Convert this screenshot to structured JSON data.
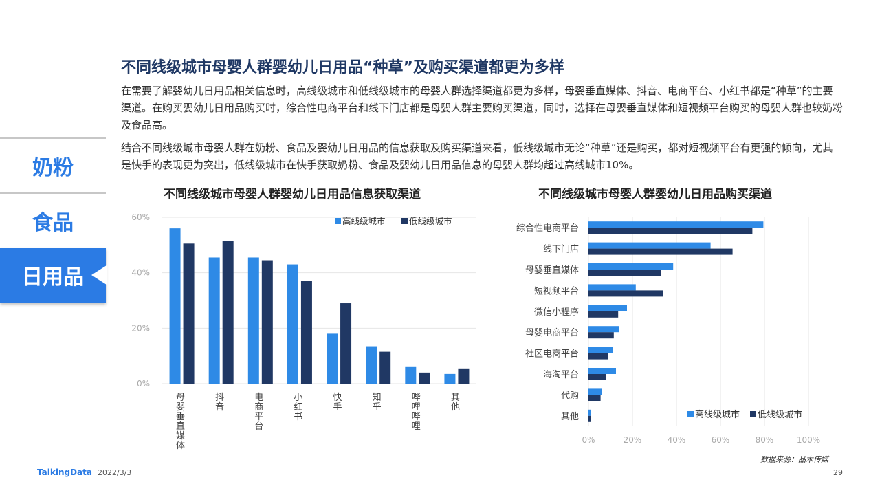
{
  "title": "不同线级城市母婴人群婴幼儿日用品“种草”及购买渠道都更为多样",
  "paragraphs": [
    "在需要了解婴幼儿日用品相关信息时，高线级城市和低线级城市的母婴人群选择渠道都更为多样，母婴垂直媒体、抖音、电商平台、小红书都是“种草”的主要渠道。在购买婴幼儿日用品购买时，综合性电商平台和线下门店都是母婴人群主要购买渠道，同时，选择在母婴垂直媒体和短视频平台购买的母婴人群也较奶粉及食品高。",
    "结合不同线级城市母婴人群在奶粉、食品及婴幼儿日用品的信息获取及购买渠道来看，低线级城市无论“种草”还是购买，都对短视频平台有更强的倾向，尤其是快手的表现更为突出，低线级城市在快手获取奶粉、食品及婴幼儿日用品信息的母婴人群均超过高线城市10%。"
  ],
  "nav": {
    "items": [
      "奶粉",
      "食品",
      "日用品"
    ],
    "active_index": 2
  },
  "colors": {
    "high": "#2e8ae6",
    "low": "#203864",
    "accent": "#2b7be4",
    "grid": "#e6e6e6"
  },
  "chart_data": [
    {
      "type": "bar",
      "title": "不同线级城市母婴人群婴幼儿日用品信息获取渠道",
      "categories": [
        "母婴垂直媒体",
        "抖音",
        "电商平台",
        "小红书",
        "快手",
        "知乎",
        "哔哩哔哩",
        "其他"
      ],
      "series": [
        {
          "name": "高线级城市",
          "values": [
            56,
            45.5,
            45.5,
            43,
            18,
            13.5,
            6,
            3.5
          ]
        },
        {
          "name": "低线级城市",
          "values": [
            50.5,
            51.5,
            44.5,
            37,
            29,
            11.5,
            4,
            5.5
          ]
        }
      ],
      "y_ticks": [
        "0%",
        "20%",
        "40%",
        "60%"
      ],
      "ylim": [
        0,
        60
      ],
      "grid": true,
      "legend_position": "top-right"
    },
    {
      "type": "bar",
      "orientation": "horizontal",
      "title": "不同线级城市母婴人群婴幼儿日用品购买渠道",
      "categories": [
        "综合性电商平台",
        "线下门店",
        "母婴垂直媒体",
        "短视频平台",
        "微信小程序",
        "母婴电商平台",
        "社区电商平台",
        "海淘平台",
        "代购",
        "其他"
      ],
      "series": [
        {
          "name": "高线级城市",
          "values": [
            79.5,
            55.5,
            38.5,
            21.5,
            17.5,
            14,
            11,
            12.5,
            6,
            1
          ]
        },
        {
          "name": "低线级城市",
          "values": [
            74.5,
            65.5,
            33,
            34,
            13.5,
            11.5,
            9,
            8,
            5.5,
            1
          ]
        }
      ],
      "x_ticks": [
        "0%",
        "20%",
        "40%",
        "60%",
        "80%",
        "100%"
      ],
      "xlim": [
        0,
        100
      ],
      "grid": true,
      "legend_position": "bottom-right"
    }
  ],
  "source": "数据来源：品木传媒",
  "footer": {
    "logo": "TalkingData",
    "date": "2022/3/3",
    "page": "29"
  }
}
